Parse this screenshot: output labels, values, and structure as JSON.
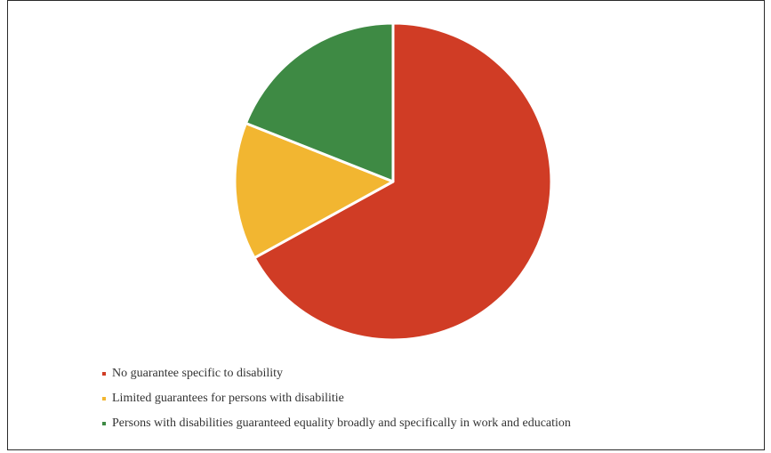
{
  "chart_data": {
    "type": "pie",
    "title": "",
    "slices": [
      {
        "label": "No guarantee specific to disability",
        "value": 67,
        "color": "#d03c25"
      },
      {
        "label": "Limited guarantees for persons with disabilitie",
        "value": 14,
        "color": "#f2b631"
      },
      {
        "label": "Persons with disabilities guaranteed equality broadly and specifically in work and education",
        "value": 19,
        "color": "#3e8a44"
      }
    ],
    "start_angle_deg": 0,
    "direction": "clockwise",
    "legend_position": "bottom-left"
  }
}
